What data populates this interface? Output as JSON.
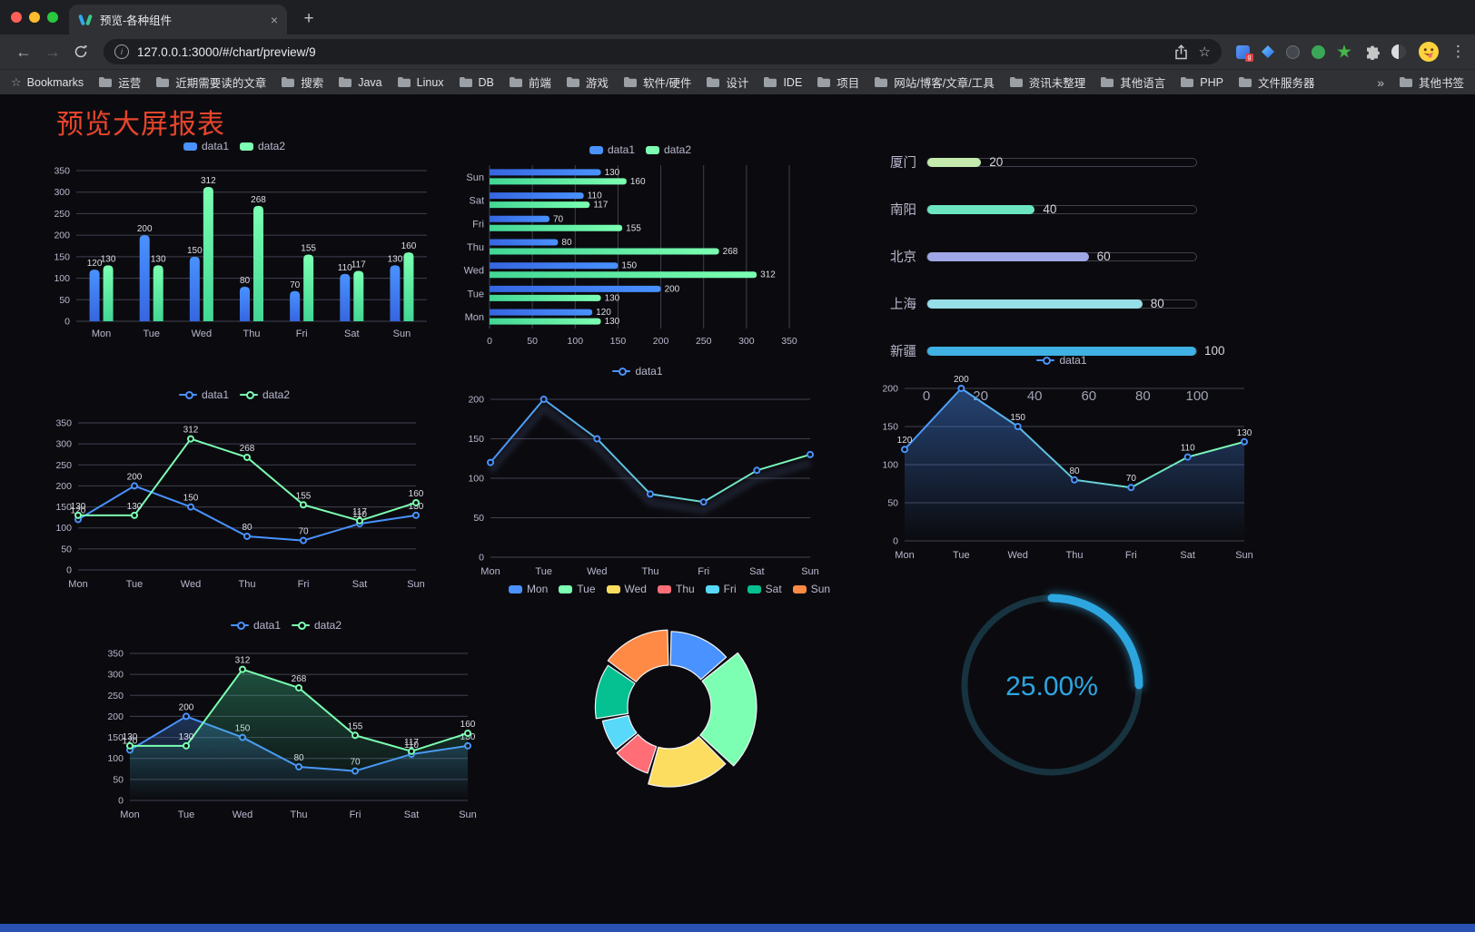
{
  "browser": {
    "tab_title": "预览-各种组件",
    "url": "127.0.0.1:3000/#/chart/preview/9",
    "bookmarks_label": "Bookmarks",
    "bookmarks": [
      "运营",
      "近期需要读的文章",
      "搜索",
      "Java",
      "Linux",
      "DB",
      "前端",
      "游戏",
      "软件/硬件",
      "设计",
      "IDE",
      "项目",
      "网站/博客/文章/工具",
      "资讯未整理",
      "其他语言",
      "PHP",
      "文件服务器"
    ],
    "other_bookmarks": "其他书签"
  },
  "icons": {
    "back": "←",
    "forward": "→",
    "close_tab": "×",
    "new_tab": "+",
    "menu": "⋮",
    "star": "☆",
    "bookmarks_star": "☆",
    "overflow": "»",
    "info": "i",
    "ext_badge": "g"
  },
  "page": {
    "title": "预览大屏报表",
    "title_color": "#e8452c",
    "accent_color": "#2a52b0"
  },
  "chart_data": [
    {
      "id": "bar-vertical",
      "type": "bar",
      "categories": [
        "Mon",
        "Tue",
        "Wed",
        "Thu",
        "Fri",
        "Sat",
        "Sun"
      ],
      "series": [
        {
          "name": "data1",
          "color": "#4992ff",
          "color2": "#3666e0",
          "values": [
            120,
            200,
            150,
            80,
            70,
            110,
            130
          ]
        },
        {
          "name": "data2",
          "color": "#7cffb2",
          "color2": "#42d695",
          "values": [
            130,
            130,
            312,
            268,
            155,
            117,
            160
          ]
        }
      ],
      "ylim": [
        0,
        350
      ],
      "ytick": 50,
      "value_labels": true,
      "legend_position": "top",
      "grid": true
    },
    {
      "id": "bar-horizontal",
      "type": "hbar",
      "categories": [
        "Mon",
        "Tue",
        "Wed",
        "Thu",
        "Fri",
        "Sat",
        "Sun"
      ],
      "series": [
        {
          "name": "data1",
          "color": "#4992ff",
          "color2": "#3666e0",
          "values": [
            120,
            200,
            150,
            80,
            70,
            110,
            130
          ]
        },
        {
          "name": "data2",
          "color": "#7cffb2",
          "color2": "#42d695",
          "values": [
            130,
            130,
            312,
            268,
            155,
            117,
            160
          ]
        }
      ],
      "xlim": [
        0,
        350
      ],
      "xtick": 50,
      "value_labels": true,
      "legend_position": "top",
      "grid": true
    },
    {
      "id": "progress-bars",
      "type": "progress",
      "max": 100,
      "axis_ticks": [
        0,
        20,
        40,
        60,
        80,
        100
      ],
      "rows": [
        {
          "label": "厦门",
          "value": 20,
          "color": "#c4ebad"
        },
        {
          "label": "南阳",
          "value": 40,
          "color": "#6be6c1"
        },
        {
          "label": "北京",
          "value": 60,
          "color": "#a0a7e6"
        },
        {
          "label": "上海",
          "value": 80,
          "color": "#96dee8"
        },
        {
          "label": "新疆",
          "value": 100,
          "color": "#3fb1e3"
        }
      ]
    },
    {
      "id": "line-two-series",
      "type": "line",
      "categories": [
        "Mon",
        "Tue",
        "Wed",
        "Thu",
        "Fri",
        "Sat",
        "Sun"
      ],
      "series": [
        {
          "name": "data1",
          "color": "#4992ff",
          "values": [
            120,
            200,
            150,
            80,
            70,
            110,
            130
          ]
        },
        {
          "name": "data2",
          "color": "#7cffb2",
          "values": [
            130,
            130,
            312,
            268,
            155,
            117,
            160
          ]
        }
      ],
      "ylim": [
        0,
        350
      ],
      "ytick": 50,
      "value_labels": true,
      "markers": true,
      "legend_position": "top",
      "grid": true
    },
    {
      "id": "line-gradient",
      "type": "line",
      "categories": [
        "Mon",
        "Tue",
        "Wed",
        "Thu",
        "Fri",
        "Sat",
        "Sun"
      ],
      "series": [
        {
          "name": "data1",
          "color": "#4992ff",
          "gradient": [
            "#4992ff",
            "#7cffb2"
          ],
          "values": [
            120,
            200,
            150,
            80,
            70,
            110,
            130
          ]
        }
      ],
      "ylim": [
        0,
        200
      ],
      "ytick": 50,
      "value_labels": false,
      "markers": true,
      "shadow": true,
      "legend_position": "top",
      "grid": true
    },
    {
      "id": "line-area",
      "type": "line",
      "categories": [
        "Mon",
        "Tue",
        "Wed",
        "Thu",
        "Fri",
        "Sat",
        "Sun"
      ],
      "series": [
        {
          "name": "data1",
          "color": "#4992ff",
          "gradient": [
            "#4992ff",
            "#7cffb2"
          ],
          "area": [
            "rgba(73,146,255,0.42)",
            "rgba(73,146,255,0)"
          ],
          "values": [
            120,
            200,
            150,
            80,
            70,
            110,
            130
          ]
        }
      ],
      "ylim": [
        0,
        200
      ],
      "ytick": 50,
      "value_labels": true,
      "markers": true,
      "legend_position": "top",
      "grid": true
    },
    {
      "id": "line-two-area",
      "type": "line",
      "categories": [
        "Mon",
        "Tue",
        "Wed",
        "Thu",
        "Fri",
        "Sat",
        "Sun"
      ],
      "series": [
        {
          "name": "data1",
          "color": "#4992ff",
          "area": [
            "rgba(73,146,255,0.30)",
            "rgba(73,146,255,0)"
          ],
          "values": [
            120,
            200,
            150,
            80,
            70,
            110,
            130
          ]
        },
        {
          "name": "data2",
          "color": "#7cffb2",
          "area": [
            "rgba(70,225,160,0.32)",
            "rgba(70,225,160,0)"
          ],
          "values": [
            130,
            130,
            312,
            268,
            155,
            117,
            160
          ]
        }
      ],
      "ylim": [
        0,
        350
      ],
      "ytick": 50,
      "value_labels": true,
      "markers": true,
      "legend_position": "top",
      "grid": true
    },
    {
      "id": "rose-pie",
      "type": "pie",
      "legend": [
        "Mon",
        "Tue",
        "Wed",
        "Thu",
        "Fri",
        "Sat",
        "Sun"
      ],
      "values": [
        120,
        200,
        150,
        80,
        70,
        110,
        130
      ],
      "colors": [
        "#4992ff",
        "#7cffb2",
        "#fddd60",
        "#ff6e76",
        "#58d9f9",
        "#05c091",
        "#ff8a45"
      ],
      "legend_position": "top"
    },
    {
      "id": "gauge",
      "type": "gauge",
      "value": 25,
      "display": "25.00%",
      "color": "#2da6e0",
      "track_color": "#17333f"
    }
  ]
}
